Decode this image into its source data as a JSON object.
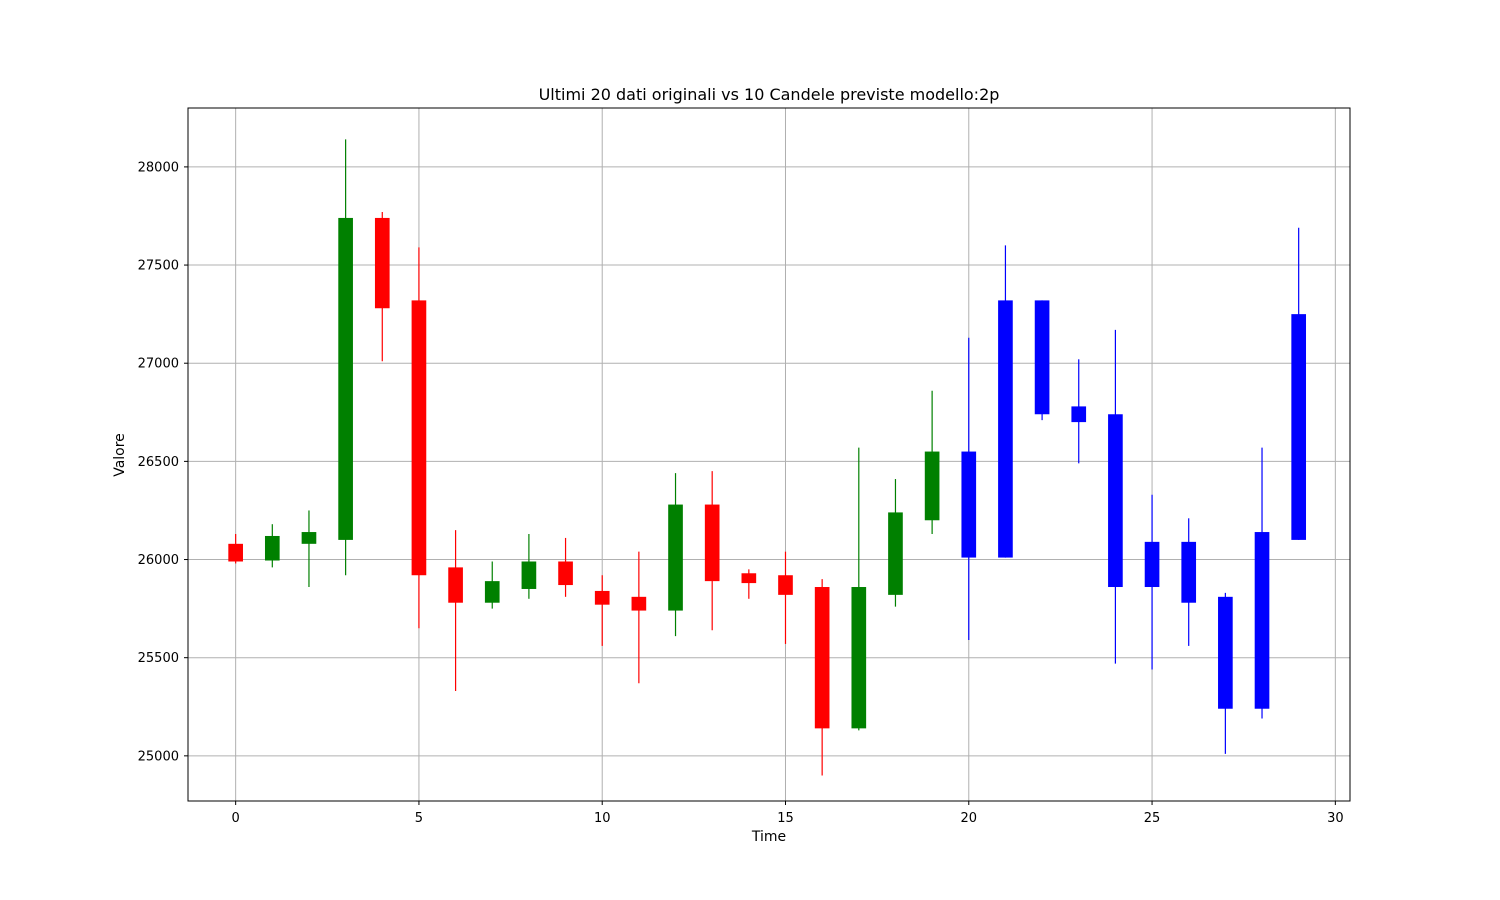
{
  "chart_data": {
    "type": "candlestick",
    "title": "Ultimi 20 dati originali vs 10 Candele previste modello:2p",
    "xlabel": "Time",
    "ylabel": "Valore",
    "xlim": [
      -1.3,
      30.4
    ],
    "ylim": [
      24770,
      28300
    ],
    "xticks": [
      0,
      5,
      10,
      15,
      20,
      25,
      30
    ],
    "yticks": [
      25000,
      25500,
      26000,
      26500,
      27000,
      27500,
      28000
    ],
    "grid": true,
    "colors": {
      "up": "#008000",
      "down": "#ff0000",
      "forecast": "#0000ff"
    },
    "series": [
      {
        "name": "",
        "role": "original",
        "candles": [
          {
            "x": 0,
            "open": 26080,
            "high": 26130,
            "low": 25980,
            "close": 25990
          },
          {
            "x": 1,
            "open": 25995,
            "high": 26180,
            "low": 25960,
            "close": 26120
          },
          {
            "x": 2,
            "open": 26080,
            "high": 26250,
            "low": 25860,
            "close": 26140
          },
          {
            "x": 3,
            "open": 26100,
            "high": 28140,
            "low": 25920,
            "close": 27740
          },
          {
            "x": 4,
            "open": 27740,
            "high": 27770,
            "low": 27010,
            "close": 27280
          },
          {
            "x": 5,
            "open": 27320,
            "high": 27590,
            "low": 25650,
            "close": 25920
          },
          {
            "x": 6,
            "open": 25960,
            "high": 26150,
            "low": 25330,
            "close": 25780
          },
          {
            "x": 7,
            "open": 25780,
            "high": 25990,
            "low": 25750,
            "close": 25890
          },
          {
            "x": 8,
            "open": 25850,
            "high": 26130,
            "low": 25800,
            "close": 25990
          },
          {
            "x": 9,
            "open": 25990,
            "high": 26110,
            "low": 25810,
            "close": 25870
          },
          {
            "x": 10,
            "open": 25840,
            "high": 25920,
            "low": 25560,
            "close": 25770
          },
          {
            "x": 11,
            "open": 25810,
            "high": 26040,
            "low": 25370,
            "close": 25740
          },
          {
            "x": 12,
            "open": 25740,
            "high": 26440,
            "low": 25610,
            "close": 26280
          },
          {
            "x": 13,
            "open": 26280,
            "high": 26450,
            "low": 25640,
            "close": 25890
          },
          {
            "x": 14,
            "open": 25930,
            "high": 25950,
            "low": 25800,
            "close": 25880
          },
          {
            "x": 15,
            "open": 25920,
            "high": 26040,
            "low": 25570,
            "close": 25820
          },
          {
            "x": 16,
            "open": 25860,
            "high": 25900,
            "low": 24900,
            "close": 25140
          },
          {
            "x": 17,
            "open": 25140,
            "high": 26570,
            "low": 25130,
            "close": 25860
          },
          {
            "x": 18,
            "open": 25820,
            "high": 26410,
            "low": 25760,
            "close": 26240
          },
          {
            "x": 19,
            "open": 26200,
            "high": 26860,
            "low": 26130,
            "close": 26550
          }
        ]
      },
      {
        "name": "",
        "role": "forecast",
        "candles": [
          {
            "x": 20,
            "open": 26010,
            "high": 27130,
            "low": 25590,
            "close": 26550
          },
          {
            "x": 21,
            "open": 26010,
            "high": 27600,
            "low": 26010,
            "close": 27320
          },
          {
            "x": 22,
            "open": 27320,
            "high": 27320,
            "low": 26710,
            "close": 26740
          },
          {
            "x": 23,
            "open": 26780,
            "high": 27020,
            "low": 26490,
            "close": 26700
          },
          {
            "x": 24,
            "open": 26740,
            "high": 27170,
            "low": 25470,
            "close": 25860
          },
          {
            "x": 25,
            "open": 26090,
            "high": 26330,
            "low": 25440,
            "close": 25860
          },
          {
            "x": 26,
            "open": 26090,
            "high": 26210,
            "low": 25560,
            "close": 25780
          },
          {
            "x": 27,
            "open": 25810,
            "high": 25830,
            "low": 25010,
            "close": 25240
          },
          {
            "x": 28,
            "open": 25240,
            "high": 26570,
            "low": 25190,
            "close": 26140
          },
          {
            "x": 29,
            "open": 26100,
            "high": 27690,
            "low": 26100,
            "close": 27250
          }
        ]
      }
    ]
  }
}
